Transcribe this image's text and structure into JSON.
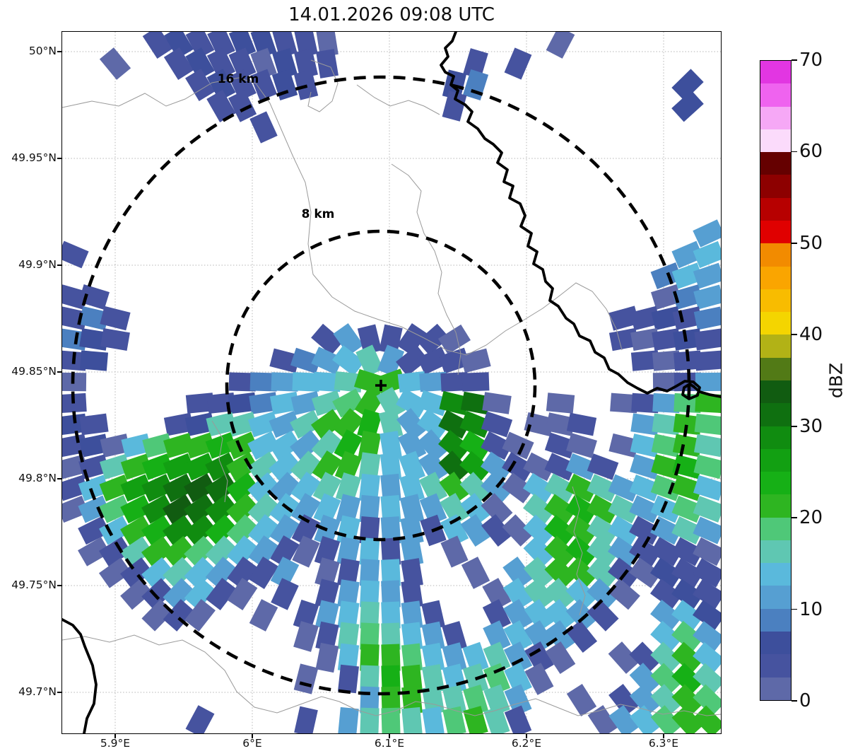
{
  "title": "14.01.2026 09:08 UTC",
  "colorbar": {
    "label": "dBZ",
    "ticks": [
      0,
      10,
      20,
      30,
      40,
      50,
      60,
      70
    ],
    "range": [
      0,
      70
    ],
    "step_dbz": 2.5,
    "palette_low_to_high": [
      "#5e69a8",
      "#46539f",
      "#3d4f9c",
      "#4b80c0",
      "#569fd2",
      "#5ab9dc",
      "#5fc7b2",
      "#4fc878",
      "#2eb521",
      "#16b016",
      "#12a012",
      "#108c10",
      "#0f7010",
      "#115c11",
      "#527a16",
      "#b2b216",
      "#f4d500",
      "#f8bc00",
      "#faa500",
      "#f28b00",
      "#e00000",
      "#b70000",
      "#8d0000",
      "#650000",
      "#fbdbfb",
      "#f6a8f6",
      "#ef63ef",
      "#e236e2"
    ]
  },
  "chart_data": {
    "type": "heatmap",
    "title": "14.01.2026 09:08 UTC",
    "subtitle": "",
    "legend_label": "dBZ",
    "x_ticks": [
      {
        "label": "5.9°E",
        "value": 5.9
      },
      {
        "label": "6°E",
        "value": 6.0
      },
      {
        "label": "6.1°E",
        "value": 6.1
      },
      {
        "label": "6.2°E",
        "value": 6.2
      },
      {
        "label": "6.3°E",
        "value": 6.3
      }
    ],
    "y_ticks": [
      {
        "label": "50°N",
        "value": 50.0
      },
      {
        "label": "49.95°N",
        "value": 49.95
      },
      {
        "label": "49.9°N",
        "value": 49.9
      },
      {
        "label": "49.85°N",
        "value": 49.85
      },
      {
        "label": "49.8°N",
        "value": 49.8
      },
      {
        "label": "49.75°N",
        "value": 49.75
      },
      {
        "label": "49.7°N",
        "value": 49.7
      }
    ],
    "grid_on": true,
    "range_rings": [
      {
        "label": "16 km",
        "km": 16
      },
      {
        "label": "8 km",
        "km": 8
      }
    ],
    "center_marker": "+",
    "reflectivity_grid": {
      "description": "Radar reflectivity field, coarse 31x33 grid over map area; char encodes dBZ bin",
      "cols": 31,
      "rows": 33,
      "char_to_dbz": {
        ".": null,
        "0": "0-2.5",
        "1": "2.5-5",
        "2": "5-7.5",
        "3": "7.5-10",
        "4": "10-12.5",
        "5": "12.5-15",
        "6": "15-17.5",
        "7": "17.5-20",
        "8": "20-22.5",
        "9": "22.5-25",
        "a": "25-27.5",
        "b": "27.5-30",
        "c": "30-32.5",
        "d": "32.5-35"
      },
      "grid_rows": [
        "....121122110..........0.......",
        "..0..12110211......1.1.........",
        "......121121......23.........2.",
        ".......11.........1..........2.",
        ".........1.....................",
        "...............................",
        "...............................",
        "...............................",
        "...............................",
        "..............................4",
        "1............................45",
        "............................354",
        "11..........................034",
        "131.......................11213",
        "321.........1411110.......10121",
        "12........1345641110.......1011",
        "0.......134556885411........014",
        "1.....112354678655bc0..0..01478",
        "21...1266546889645cb1.001..4687",
        "120578898554698544b910.10.05786",
        "01689aab8656886554ca410141.4897",
        "158abcdc95456654568640568645785",
        "0479bdcb8654544544650.689864576",
        ".1589bb975414514415410598651464",
        ".0168876541014514.0...589641110",
        "..015654114.01451..0.4688610211",
        "...014510.1.14541...0566540.121",
        "....010..0.1456541..145541..452",
        "...........01676541.45441...574",
        "............058875456410..01685",
        "...........0.1698656750....4796",
        "..............48866764..0.14687",
        "......1....1.467657861...045788"
      ]
    }
  }
}
